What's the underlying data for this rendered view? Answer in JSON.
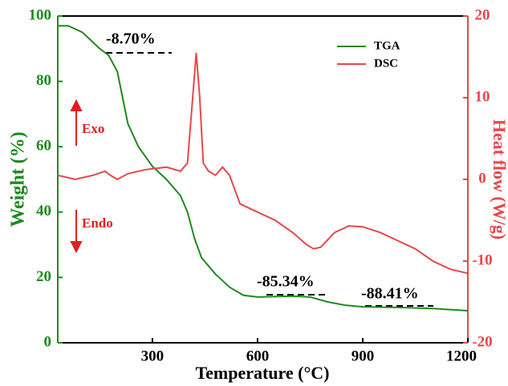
{
  "chart_data": {
    "type": "line",
    "xlabel": "Temperature (°C)",
    "ylabel": "Weight (%)",
    "y2label": "Heat flow (W/g)",
    "xlim": [
      30,
      1200
    ],
    "xticks": [
      300,
      600,
      900,
      1200
    ],
    "ylim": [
      0,
      100
    ],
    "yticks": [
      0,
      20,
      40,
      60,
      80,
      100
    ],
    "y2lim": [
      -20,
      20
    ],
    "y2ticks": [
      -20,
      -10,
      0,
      10,
      20
    ],
    "legend": "upper right",
    "series": [
      {
        "name": "TGA",
        "color": "#1e8a1e",
        "x": [
          30,
          60,
          100,
          150,
          175,
          200,
          215,
          230,
          260,
          300,
          340,
          380,
          400,
          420,
          440,
          480,
          520,
          560,
          600,
          700,
          750,
          800,
          850,
          900,
          1000,
          1100,
          1200
        ],
        "values": [
          97,
          97,
          95,
          90,
          88,
          83,
          75,
          67,
          60,
          54,
          50,
          45,
          40,
          32,
          26,
          21,
          17,
          14.5,
          14,
          14.3,
          14,
          12.5,
          11.5,
          11,
          10.8,
          10.5,
          9.8
        ]
      },
      {
        "name": "DSC",
        "color": "#e8474a",
        "axis": "y2",
        "x": [
          30,
          80,
          130,
          165,
          180,
          200,
          230,
          280,
          340,
          380,
          400,
          415,
          425,
          435,
          445,
          460,
          480,
          500,
          520,
          550,
          600,
          650,
          700,
          740,
          760,
          780,
          820,
          860,
          900,
          950,
          1000,
          1050,
          1100,
          1150,
          1200
        ],
        "values": [
          0.5,
          0,
          0.5,
          1,
          0.5,
          0,
          0.7,
          1.2,
          1.5,
          1,
          2,
          10,
          15.5,
          10,
          2,
          1,
          0.5,
          1.5,
          0.5,
          -3,
          -4,
          -5,
          -6.5,
          -8,
          -8.5,
          -8.3,
          -6.5,
          -5.7,
          -5.8,
          -6.5,
          -7.5,
          -8.5,
          -10,
          -11,
          -11.5
        ]
      }
    ],
    "annotations": [
      "-8.70%",
      "-85.34%",
      "-88.41%",
      "Exo",
      "Endo"
    ]
  }
}
